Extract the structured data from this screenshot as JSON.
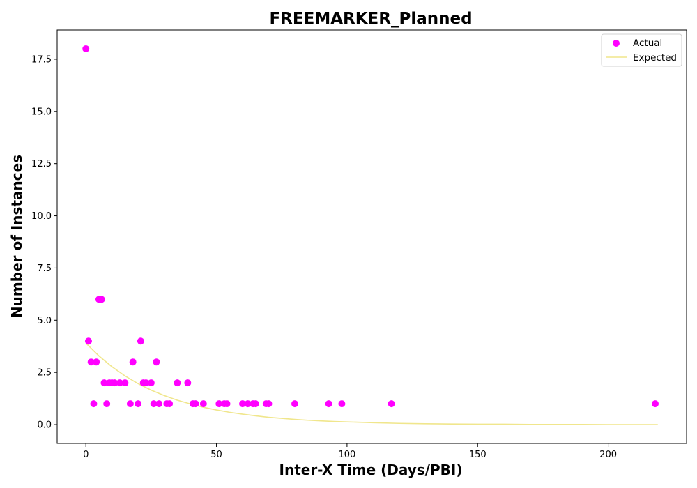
{
  "chart_data": {
    "type": "scatter",
    "title": "FREEMARKER_Planned",
    "xlabel": "Inter-X Time (Days/PBI)",
    "ylabel": "Number of Instances",
    "xlim": [
      -11,
      230
    ],
    "ylim": [
      -0.9,
      18.9
    ],
    "xticks": [
      0,
      50,
      100,
      150,
      200
    ],
    "xtick_labels": [
      "0",
      "50",
      "100",
      "150",
      "200"
    ],
    "yticks": [
      0,
      2.5,
      5,
      7.5,
      10,
      12.5,
      15,
      17.5
    ],
    "ytick_labels": [
      "0.0",
      "2.5",
      "5.0",
      "7.5",
      "10.0",
      "12.5",
      "15.0",
      "17.5"
    ],
    "grid": false,
    "legend_position": "top-right",
    "series": [
      {
        "name": "Actual",
        "kind": "scatter",
        "color": "#ff00ff",
        "points": [
          [
            0,
            18
          ],
          [
            1,
            4
          ],
          [
            2,
            3
          ],
          [
            3,
            1
          ],
          [
            4,
            3
          ],
          [
            5,
            6
          ],
          [
            6,
            6
          ],
          [
            7,
            2
          ],
          [
            8,
            1
          ],
          [
            9,
            2
          ],
          [
            10,
            2
          ],
          [
            11,
            2
          ],
          [
            13,
            2
          ],
          [
            15,
            2
          ],
          [
            17,
            1
          ],
          [
            18,
            3
          ],
          [
            20,
            1
          ],
          [
            21,
            4
          ],
          [
            22,
            2
          ],
          [
            23,
            2
          ],
          [
            25,
            2
          ],
          [
            26,
            1
          ],
          [
            27,
            3
          ],
          [
            28,
            1
          ],
          [
            31,
            1
          ],
          [
            32,
            1
          ],
          [
            35,
            2
          ],
          [
            39,
            2
          ],
          [
            41,
            1
          ],
          [
            42,
            1
          ],
          [
            45,
            1
          ],
          [
            51,
            1
          ],
          [
            53,
            1
          ],
          [
            54,
            1
          ],
          [
            60,
            1
          ],
          [
            62,
            1
          ],
          [
            64,
            1
          ],
          [
            65,
            1
          ],
          [
            69,
            1
          ],
          [
            70,
            1
          ],
          [
            80,
            1
          ],
          [
            93,
            1
          ],
          [
            98,
            1
          ],
          [
            117,
            1
          ],
          [
            218,
            1
          ]
        ]
      },
      {
        "name": "Expected",
        "kind": "line",
        "color": "#f0e68c",
        "points": [
          [
            0,
            3.9
          ],
          [
            5,
            3.29
          ],
          [
            10,
            2.77
          ],
          [
            15,
            2.33
          ],
          [
            20,
            1.96
          ],
          [
            25,
            1.65
          ],
          [
            30,
            1.39
          ],
          [
            35,
            1.17
          ],
          [
            40,
            0.99
          ],
          [
            45,
            0.83
          ],
          [
            50,
            0.7
          ],
          [
            55,
            0.59
          ],
          [
            60,
            0.5
          ],
          [
            65,
            0.42
          ],
          [
            70,
            0.35
          ],
          [
            75,
            0.3
          ],
          [
            80,
            0.25
          ],
          [
            85,
            0.21
          ],
          [
            90,
            0.18
          ],
          [
            95,
            0.15
          ],
          [
            100,
            0.13
          ],
          [
            110,
            0.09
          ],
          [
            120,
            0.06
          ],
          [
            130,
            0.04
          ],
          [
            140,
            0.03
          ],
          [
            150,
            0.02
          ],
          [
            160,
            0.02
          ],
          [
            170,
            0.01
          ],
          [
            180,
            0.01
          ],
          [
            190,
            0.01
          ],
          [
            200,
            0.0
          ],
          [
            210,
            0.0
          ],
          [
            219,
            0.0
          ]
        ]
      }
    ]
  }
}
